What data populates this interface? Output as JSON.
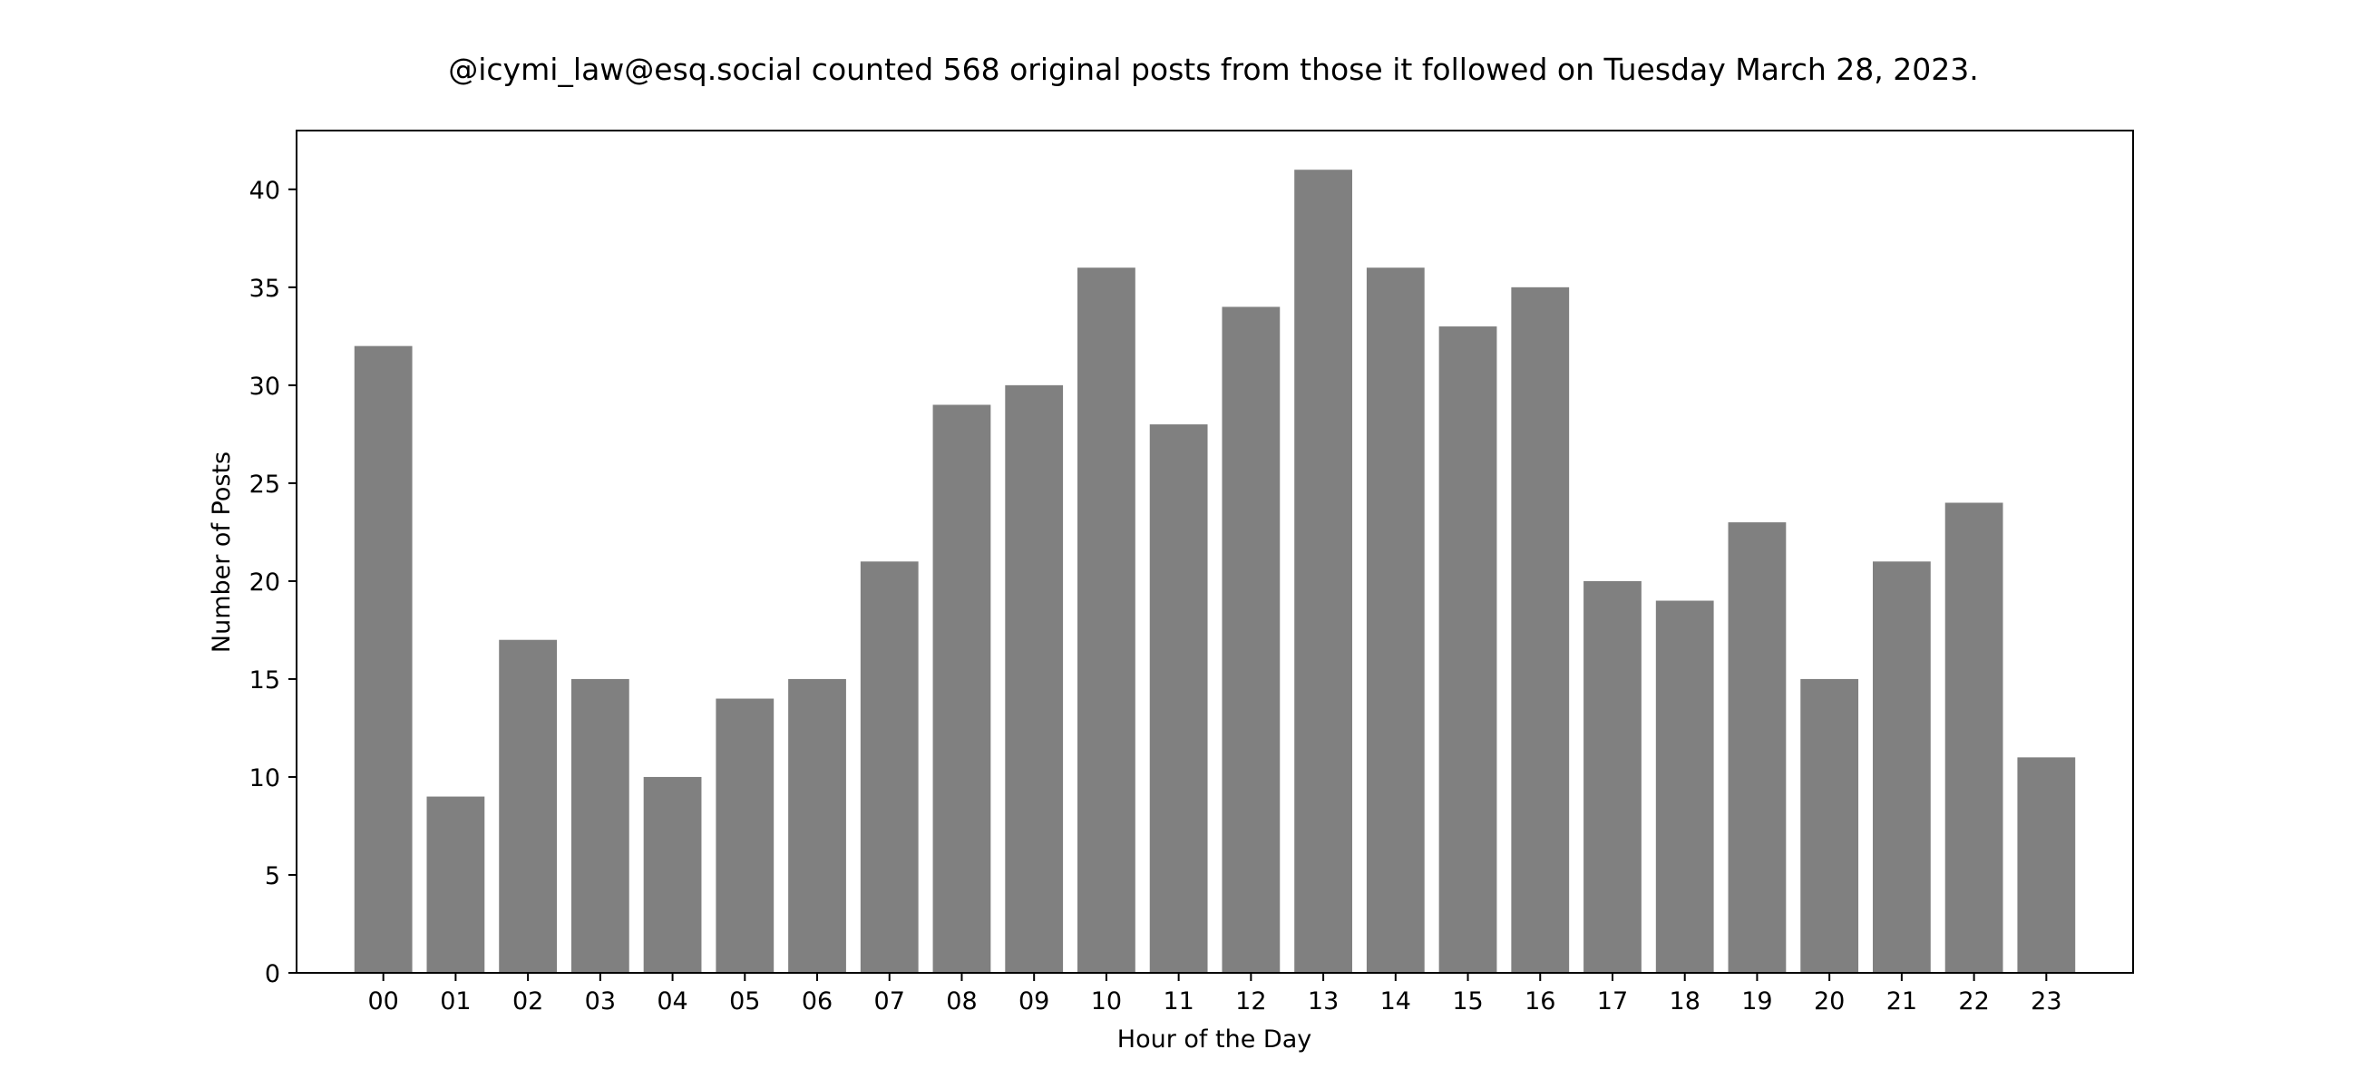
{
  "chart_data": {
    "type": "bar",
    "title": "@icymi_law@esq.social counted 568 original posts from those it followed on Tuesday March 28, 2023.",
    "xlabel": "Hour of the Day",
    "ylabel": "Number of Posts",
    "categories": [
      "00",
      "01",
      "02",
      "03",
      "04",
      "05",
      "06",
      "07",
      "08",
      "09",
      "10",
      "11",
      "12",
      "13",
      "14",
      "15",
      "16",
      "17",
      "18",
      "19",
      "20",
      "21",
      "22",
      "23"
    ],
    "values": [
      32,
      9,
      17,
      15,
      10,
      14,
      15,
      21,
      29,
      30,
      36,
      28,
      34,
      41,
      36,
      33,
      35,
      20,
      19,
      23,
      15,
      21,
      24,
      11
    ],
    "ylim": [
      0,
      43
    ],
    "yticks": [
      0,
      5,
      10,
      15,
      20,
      25,
      30,
      35,
      40
    ],
    "grid": false,
    "legend": "none",
    "bar_color": "#808080"
  }
}
